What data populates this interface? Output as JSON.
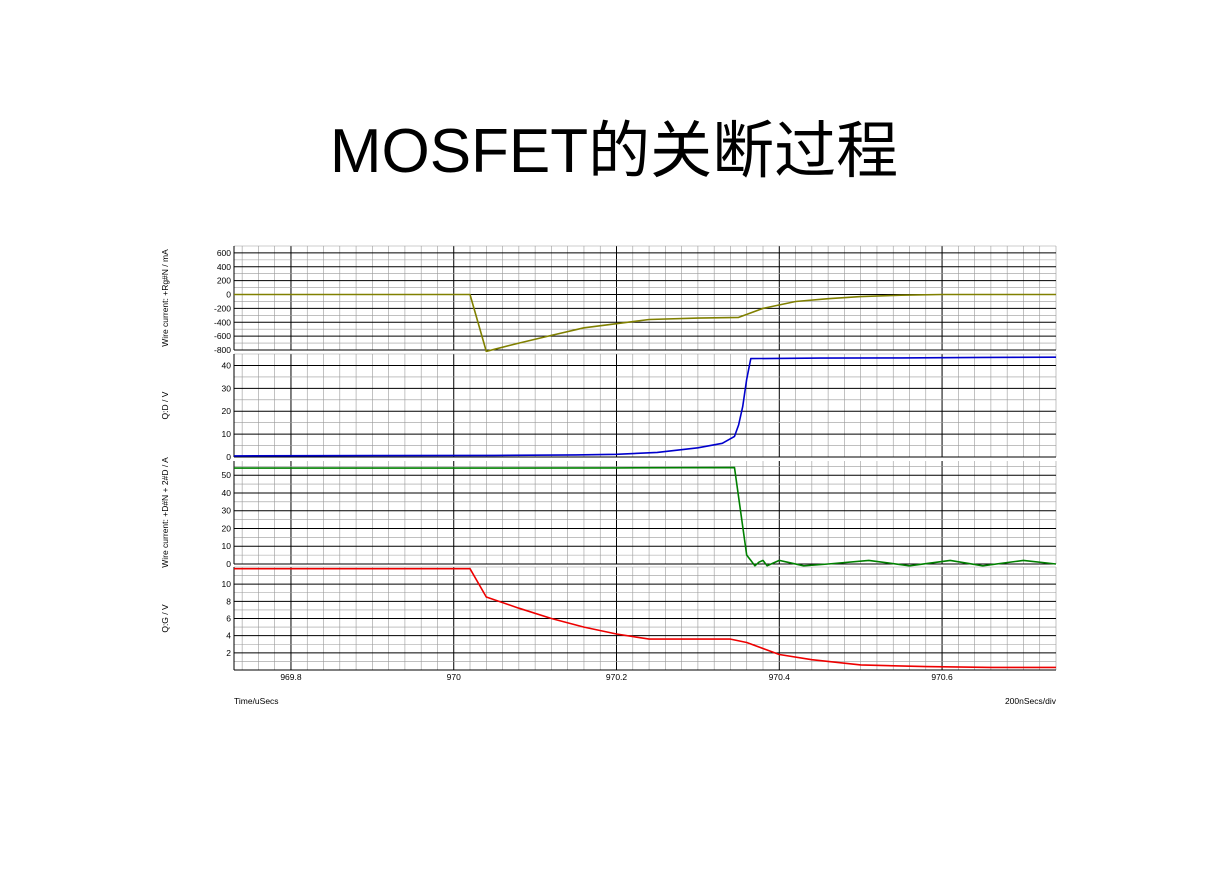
{
  "title": "MOSFET的关断过程",
  "colors": {
    "wire_current_rg": "#808000",
    "drain_voltage": "#0000cc",
    "wire_current_d": "#008000",
    "gate_voltage": "#ee0000",
    "grid_major": "#000000",
    "grid_minor": "#9a9a9a"
  },
  "chart_data": [
    {
      "type": "line",
      "ylabel": "Wire current: +Rg#N / mA",
      "yticks": [
        "600",
        "400",
        "200",
        "0",
        "-200",
        "-400",
        "-600",
        "-800"
      ],
      "ylim": [
        -800,
        700
      ],
      "series": [
        {
          "name": "",
          "color_key": "wire_current_rg",
          "x": [
            969.73,
            970.02,
            970.04,
            970.05,
            970.08,
            970.12,
            970.16,
            970.2,
            970.24,
            970.3,
            970.35,
            970.38,
            970.42,
            970.46,
            970.5,
            970.55,
            970.6,
            970.7,
            970.74
          ],
          "y": [
            0,
            0,
            -820,
            -790,
            -700,
            -590,
            -480,
            -420,
            -360,
            -340,
            -330,
            -200,
            -100,
            -60,
            -30,
            -10,
            0,
            0,
            0
          ]
        }
      ]
    },
    {
      "type": "line",
      "ylabel": "Q:D / V",
      "yticks": [
        "40",
        "30",
        "20",
        "10",
        "0"
      ],
      "ylim": [
        0,
        45
      ],
      "series": [
        {
          "name": "",
          "color_key": "drain_voltage",
          "x": [
            969.73,
            969.9,
            970.05,
            970.15,
            970.2,
            970.25,
            970.3,
            970.33,
            970.345,
            970.35,
            970.355,
            970.36,
            970.365,
            970.45,
            970.55,
            970.65,
            970.74
          ],
          "y": [
            0.5,
            0.6,
            0.7,
            0.9,
            1.2,
            2.0,
            4.0,
            6.0,
            9.0,
            14.0,
            22.0,
            34.0,
            43.0,
            43.2,
            43.3,
            43.5,
            43.6
          ]
        }
      ]
    },
    {
      "type": "line",
      "ylabel": "Wire current: +D#N + 2#D / A",
      "yticks": [
        "50",
        "40",
        "30",
        "20",
        "10",
        "0"
      ],
      "ylim": [
        0,
        58
      ],
      "series": [
        {
          "name": "",
          "color_key": "wire_current_d",
          "x": [
            969.73,
            970.0,
            970.2,
            970.345,
            970.36,
            970.365,
            970.37,
            970.375,
            970.38,
            970.385,
            970.39,
            970.4,
            970.41,
            970.43,
            970.46,
            970.51,
            970.56,
            970.61,
            970.65,
            970.7,
            970.74
          ],
          "y": [
            54,
            54,
            54.1,
            54.3,
            5,
            2,
            -1,
            1,
            2,
            -1,
            0,
            2,
            1,
            -1,
            0,
            2,
            -1,
            2,
            -1,
            2,
            0
          ]
        }
      ]
    },
    {
      "type": "line",
      "ylabel": "Q:G / V",
      "xlabel": "Time/uSecs",
      "xticks": [
        "969.8",
        "970",
        "970.2",
        "970.4",
        "970.6"
      ],
      "xlim": [
        969.73,
        970.74
      ],
      "scale_note": "200nSecs/div",
      "yticks": [
        "10",
        "8",
        "6",
        "4",
        "2"
      ],
      "ylim": [
        0,
        12
      ],
      "series": [
        {
          "name": "",
          "color_key": "gate_voltage",
          "x": [
            969.73,
            970.02,
            970.04,
            970.08,
            970.12,
            970.16,
            970.2,
            970.24,
            970.3,
            970.34,
            970.36,
            970.38,
            970.4,
            970.44,
            970.5,
            970.58,
            970.66,
            970.74
          ],
          "y": [
            11.8,
            11.8,
            8.5,
            7.2,
            6.0,
            5.0,
            4.2,
            3.6,
            3.6,
            3.6,
            3.2,
            2.5,
            1.8,
            1.2,
            0.6,
            0.4,
            0.3,
            0.3
          ]
        }
      ]
    }
  ]
}
